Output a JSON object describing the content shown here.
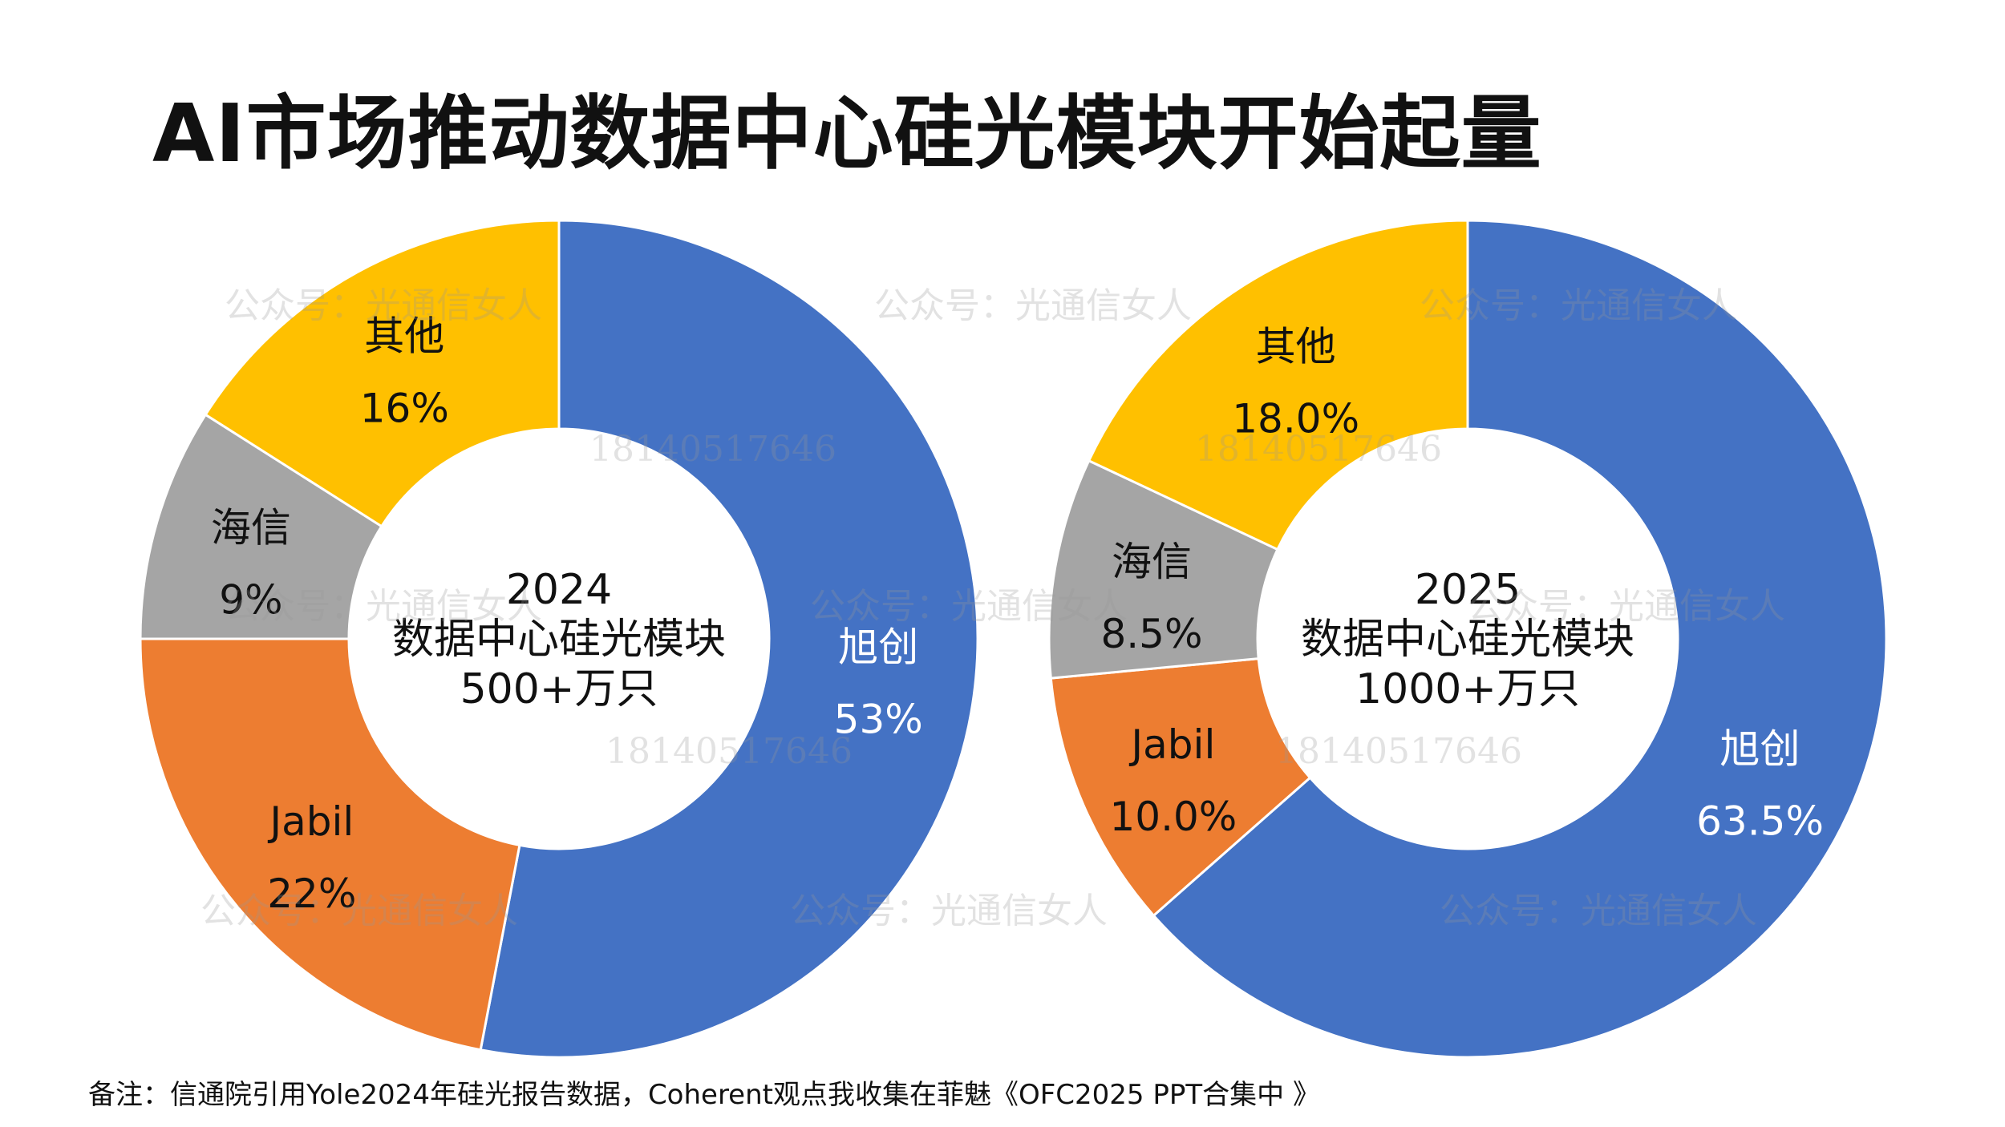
{
  "title": "AI市场推动数据中心硅光模块开始起量",
  "footnote": "备注：信通院引用Yole2024年硅光报告数据，Coherent观点我收集在菲魅《OFC2025 PPT合集中 》",
  "watermark": {
    "account": "公众号：光通信女人",
    "phone": "18140517646"
  },
  "colors": {
    "旭创": "#4472C4",
    "Jabil": "#ED7D31",
    "海信": "#A5A5A5",
    "其他": "#FFC000"
  },
  "chart_data": [
    {
      "type": "donut",
      "center_lines": [
        "2024",
        "数据中心硅光模块",
        "500+万只"
      ],
      "slices": [
        {
          "label": "旭创",
          "value": 53,
          "display": "53%"
        },
        {
          "label": "Jabil",
          "value": 22,
          "display": "22%"
        },
        {
          "label": "海信",
          "value": 9,
          "display": "9%"
        },
        {
          "label": "其他",
          "value": 16,
          "display": "16%"
        }
      ]
    },
    {
      "type": "donut",
      "center_lines": [
        "2025",
        "数据中心硅光模块",
        "1000+万只"
      ],
      "slices": [
        {
          "label": "旭创",
          "value": 63.5,
          "display": "63.5%"
        },
        {
          "label": "Jabil",
          "value": 10.0,
          "display": "10.0%"
        },
        {
          "label": "海信",
          "value": 8.5,
          "display": "8.5%"
        },
        {
          "label": "其他",
          "value": 18.0,
          "display": "18.0%"
        }
      ]
    }
  ]
}
